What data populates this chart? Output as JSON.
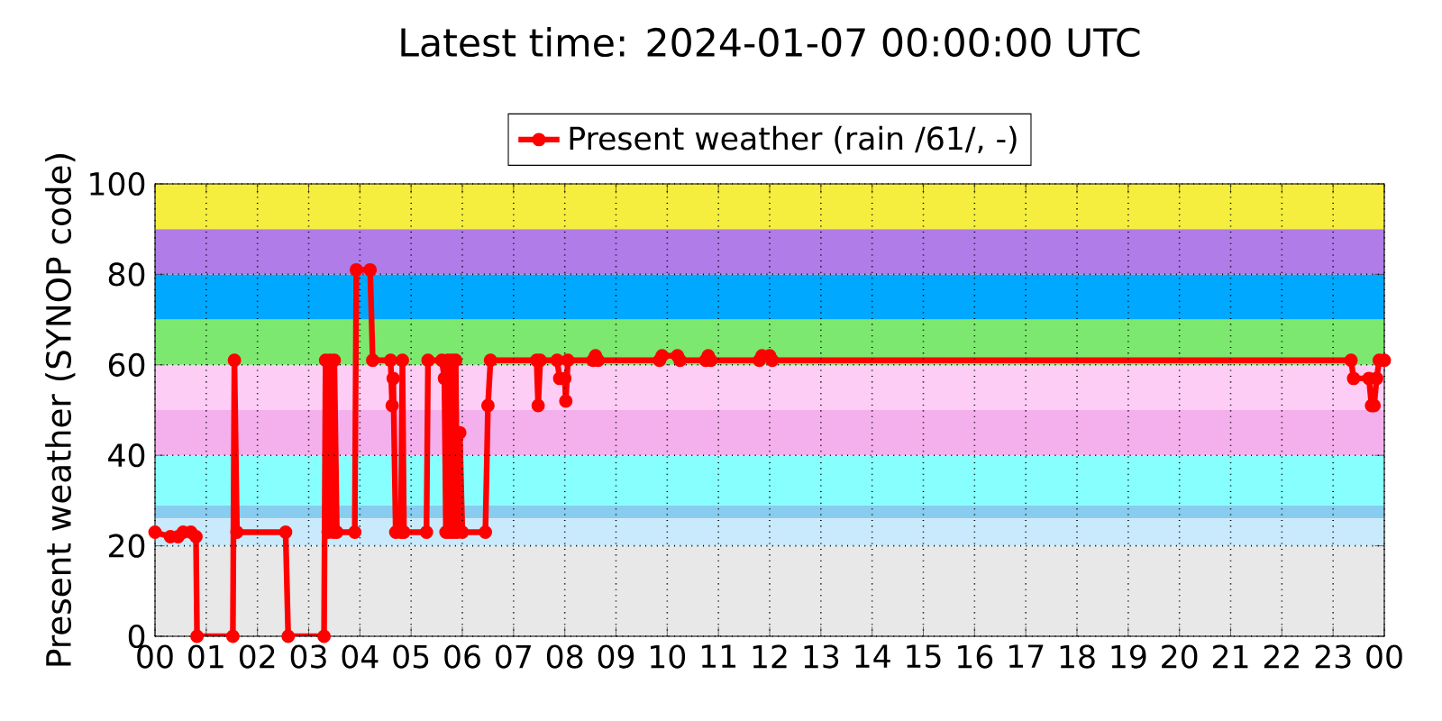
{
  "chart_data": {
    "type": "line",
    "title": "Latest time: 2024-01-07 00:00:00 UTC",
    "ylabel": "Present weather (SYNOP code)",
    "xlim": [
      0,
      24
    ],
    "ylim": [
      0,
      100
    ],
    "xticks": [
      {
        "value": 0,
        "label": "00"
      },
      {
        "value": 1,
        "label": "01"
      },
      {
        "value": 2,
        "label": "02"
      },
      {
        "value": 3,
        "label": "03"
      },
      {
        "value": 4,
        "label": "04"
      },
      {
        "value": 5,
        "label": "05"
      },
      {
        "value": 6,
        "label": "06"
      },
      {
        "value": 7,
        "label": "07"
      },
      {
        "value": 8,
        "label": "08"
      },
      {
        "value": 9,
        "label": "09"
      },
      {
        "value": 10,
        "label": "10"
      },
      {
        "value": 11,
        "label": "11"
      },
      {
        "value": 12,
        "label": "12"
      },
      {
        "value": 13,
        "label": "13"
      },
      {
        "value": 14,
        "label": "14"
      },
      {
        "value": 15,
        "label": "15"
      },
      {
        "value": 16,
        "label": "16"
      },
      {
        "value": 17,
        "label": "17"
      },
      {
        "value": 18,
        "label": "18"
      },
      {
        "value": 19,
        "label": "19"
      },
      {
        "value": 20,
        "label": "20"
      },
      {
        "value": 21,
        "label": "21"
      },
      {
        "value": 22,
        "label": "22"
      },
      {
        "value": 23,
        "label": "23"
      },
      {
        "value": 24,
        "label": "00"
      }
    ],
    "yticks": [
      0,
      20,
      40,
      60,
      80,
      100
    ],
    "grid": true,
    "legend": "top",
    "marker": "circle",
    "line_style": "solid",
    "bands": [
      {
        "axis": "y",
        "from": 0,
        "to": 20,
        "color": "#e8e8e8"
      },
      {
        "axis": "y",
        "from": 20,
        "to": 26,
        "color": "#c8eafc"
      },
      {
        "axis": "y",
        "from": 26,
        "to": 29,
        "color": "#88ccf0"
      },
      {
        "axis": "y",
        "from": 29,
        "to": 40,
        "color": "#88ffff"
      },
      {
        "axis": "y",
        "from": 40,
        "to": 50,
        "color": "#f4b0ec"
      },
      {
        "axis": "y",
        "from": 50,
        "to": 60,
        "color": "#fdcdf5"
      },
      {
        "axis": "y",
        "from": 60,
        "to": 70,
        "color": "#7de870"
      },
      {
        "axis": "y",
        "from": 70,
        "to": 80,
        "color": "#00a8ff"
      },
      {
        "axis": "y",
        "from": 80,
        "to": 90,
        "color": "#b07ce8"
      },
      {
        "axis": "y",
        "from": 90,
        "to": 100,
        "color": "#f5ee3e"
      }
    ],
    "series": [
      {
        "name": "Present weather (rain /61/, -)",
        "color": "#ff0000",
        "x": [
          0,
          0.3,
          0.45,
          0.55,
          0.7,
          0.8,
          0.82,
          1.52,
          1.55,
          1.6,
          2.55,
          2.6,
          3.3,
          3.33,
          3.38,
          3.42,
          3.48,
          3.5,
          3.55,
          3.9,
          3.93,
          4.2,
          4.25,
          4.6,
          4.63,
          4.65,
          4.7,
          4.8,
          4.83,
          4.86,
          5.3,
          5.33,
          5.6,
          5.65,
          5.68,
          5.72,
          5.76,
          5.8,
          5.83,
          5.87,
          5.9,
          5.95,
          6.0,
          6.45,
          6.5,
          6.55,
          7.45,
          7.48,
          7.52,
          7.85,
          7.9,
          8.0,
          8.02,
          8.06,
          8.55,
          8.6,
          8.65,
          9.85,
          9.9,
          10.2,
          10.25,
          10.75,
          10.8,
          10.85,
          11.8,
          11.85,
          12.0,
          12.05,
          23.35,
          23.4,
          23.7,
          23.75,
          23.8,
          23.85,
          23.9,
          24
        ],
        "values": [
          23,
          22,
          22,
          23,
          23,
          22,
          0,
          0,
          61,
          23,
          23,
          0,
          0,
          61,
          23,
          61,
          23,
          61,
          23,
          23,
          81,
          81,
          61,
          61,
          51,
          57,
          23,
          23,
          61,
          23,
          23,
          61,
          61,
          57,
          23,
          61,
          23,
          61,
          23,
          61,
          23,
          45,
          23,
          23,
          51,
          61,
          61,
          51,
          61,
          61,
          57,
          57,
          52,
          61,
          61,
          62,
          61,
          61,
          62,
          62,
          61,
          61,
          62,
          61,
          61,
          62,
          62,
          61,
          61,
          57,
          57,
          51,
          51,
          57,
          61,
          61
        ]
      }
    ]
  }
}
